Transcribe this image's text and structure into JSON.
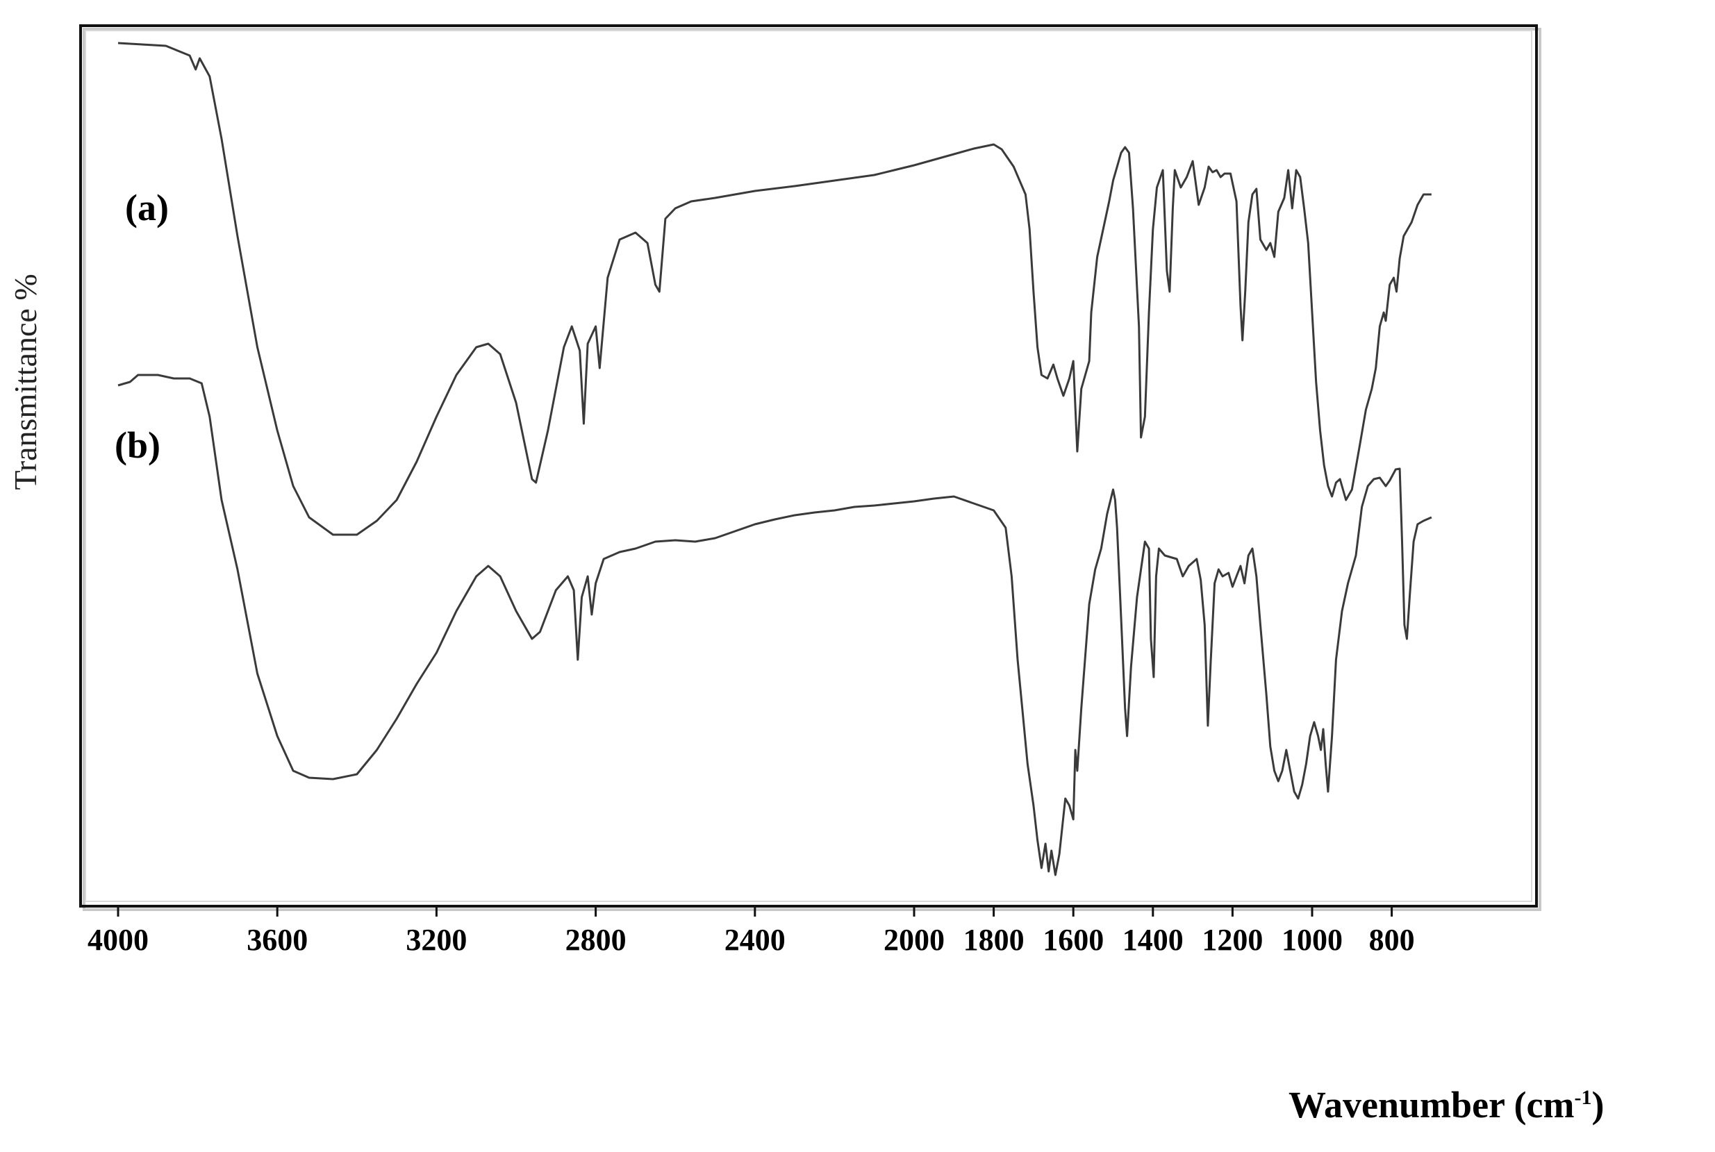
{
  "figure": {
    "ylabel": "Transmittance %",
    "xlabel_main": "Wavenumber (cm",
    "xlabel_sup": "-1",
    "xlabel_close": ")",
    "series_labels": [
      "(a)",
      "(b)"
    ]
  },
  "colors": {
    "line": "#3a3a3a",
    "frame": "#111111",
    "frame_shadow": "#c8c8c8",
    "background": "#ffffff"
  },
  "chart_data": {
    "type": "line",
    "title": "",
    "xlabel": "Wavenumber (cm-1)",
    "ylabel": "Transmittance %",
    "xlim": [
      4000,
      700
    ],
    "x_reversed": true,
    "x_ticks": [
      4000,
      3600,
      3200,
      2800,
      2400,
      2000,
      1800,
      1600,
      1400,
      1200,
      1000,
      800
    ],
    "y_ticks": [],
    "grid": false,
    "legend": "inline labels (a) and (b) on left side",
    "y_units_note": "pixel-y values (relative transmittance, smaller = higher transmittance); spectra are vertically offset",
    "series": [
      {
        "name": "(a)",
        "points": [
          [
            4000,
            62
          ],
          [
            3880,
            66
          ],
          [
            3820,
            80
          ],
          [
            3805,
            100
          ],
          [
            3795,
            84
          ],
          [
            3770,
            110
          ],
          [
            3740,
            200
          ],
          [
            3700,
            340
          ],
          [
            3650,
            500
          ],
          [
            3600,
            620
          ],
          [
            3560,
            700
          ],
          [
            3520,
            745
          ],
          [
            3460,
            770
          ],
          [
            3400,
            770
          ],
          [
            3350,
            750
          ],
          [
            3300,
            720
          ],
          [
            3250,
            665
          ],
          [
            3200,
            600
          ],
          [
            3150,
            540
          ],
          [
            3100,
            500
          ],
          [
            3070,
            495
          ],
          [
            3040,
            510
          ],
          [
            3000,
            580
          ],
          [
            2960,
            690
          ],
          [
            2950,
            695
          ],
          [
            2920,
            620
          ],
          [
            2880,
            500
          ],
          [
            2860,
            470
          ],
          [
            2840,
            505
          ],
          [
            2830,
            610
          ],
          [
            2820,
            495
          ],
          [
            2800,
            470
          ],
          [
            2790,
            530
          ],
          [
            2770,
            400
          ],
          [
            2740,
            345
          ],
          [
            2700,
            335
          ],
          [
            2670,
            350
          ],
          [
            2650,
            410
          ],
          [
            2640,
            420
          ],
          [
            2625,
            315
          ],
          [
            2600,
            300
          ],
          [
            2560,
            290
          ],
          [
            2500,
            285
          ],
          [
            2400,
            275
          ],
          [
            2300,
            268
          ],
          [
            2200,
            260
          ],
          [
            2100,
            252
          ],
          [
            2050,
            245
          ],
          [
            2000,
            238
          ],
          [
            1950,
            230
          ],
          [
            1900,
            222
          ],
          [
            1850,
            214
          ],
          [
            1800,
            208
          ],
          [
            1780,
            215
          ],
          [
            1750,
            240
          ],
          [
            1720,
            280
          ],
          [
            1710,
            330
          ],
          [
            1700,
            420
          ],
          [
            1690,
            500
          ],
          [
            1680,
            540
          ],
          [
            1665,
            545
          ],
          [
            1650,
            525
          ],
          [
            1640,
            545
          ],
          [
            1625,
            570
          ],
          [
            1610,
            545
          ],
          [
            1600,
            520
          ],
          [
            1590,
            650
          ],
          [
            1580,
            560
          ],
          [
            1570,
            540
          ],
          [
            1560,
            520
          ],
          [
            1555,
            450
          ],
          [
            1540,
            370
          ],
          [
            1525,
            330
          ],
          [
            1510,
            290
          ],
          [
            1500,
            260
          ],
          [
            1480,
            220
          ],
          [
            1470,
            212
          ],
          [
            1460,
            220
          ],
          [
            1450,
            300
          ],
          [
            1435,
            470
          ],
          [
            1430,
            630
          ],
          [
            1420,
            600
          ],
          [
            1410,
            450
          ],
          [
            1400,
            330
          ],
          [
            1390,
            270
          ],
          [
            1375,
            245
          ],
          [
            1365,
            390
          ],
          [
            1358,
            420
          ],
          [
            1350,
            300
          ],
          [
            1345,
            245
          ],
          [
            1330,
            270
          ],
          [
            1315,
            255
          ],
          [
            1300,
            232
          ],
          [
            1285,
            295
          ],
          [
            1270,
            270
          ],
          [
            1260,
            240
          ],
          [
            1250,
            248
          ],
          [
            1240,
            245
          ],
          [
            1230,
            255
          ],
          [
            1220,
            250
          ],
          [
            1205,
            250
          ],
          [
            1190,
            290
          ],
          [
            1180,
            440
          ],
          [
            1175,
            490
          ],
          [
            1168,
            420
          ],
          [
            1160,
            320
          ],
          [
            1150,
            280
          ],
          [
            1140,
            272
          ],
          [
            1130,
            345
          ],
          [
            1115,
            360
          ],
          [
            1105,
            350
          ],
          [
            1095,
            370
          ],
          [
            1085,
            305
          ],
          [
            1070,
            285
          ],
          [
            1060,
            245
          ],
          [
            1050,
            300
          ],
          [
            1040,
            245
          ],
          [
            1030,
            255
          ],
          [
            1020,
            300
          ],
          [
            1010,
            350
          ],
          [
            1000,
            450
          ],
          [
            990,
            550
          ],
          [
            980,
            620
          ],
          [
            970,
            670
          ],
          [
            960,
            700
          ],
          [
            950,
            715
          ],
          [
            940,
            695
          ],
          [
            930,
            690
          ],
          [
            915,
            720
          ],
          [
            900,
            705
          ],
          [
            880,
            640
          ],
          [
            865,
            590
          ],
          [
            850,
            560
          ],
          [
            840,
            530
          ],
          [
            830,
            470
          ],
          [
            820,
            450
          ],
          [
            815,
            462
          ],
          [
            805,
            410
          ],
          [
            795,
            400
          ],
          [
            788,
            420
          ],
          [
            780,
            372
          ],
          [
            770,
            340
          ],
          [
            760,
            330
          ],
          [
            750,
            320
          ],
          [
            735,
            295
          ],
          [
            720,
            280
          ],
          [
            700,
            280
          ]
        ]
      },
      {
        "name": "(b)",
        "points": [
          [
            4000,
            555
          ],
          [
            3970,
            550
          ],
          [
            3950,
            540
          ],
          [
            3900,
            540
          ],
          [
            3860,
            545
          ],
          [
            3820,
            545
          ],
          [
            3790,
            552
          ],
          [
            3770,
            600
          ],
          [
            3740,
            720
          ],
          [
            3700,
            820
          ],
          [
            3650,
            970
          ],
          [
            3600,
            1060
          ],
          [
            3560,
            1110
          ],
          [
            3520,
            1120
          ],
          [
            3460,
            1122
          ],
          [
            3400,
            1115
          ],
          [
            3350,
            1080
          ],
          [
            3300,
            1035
          ],
          [
            3250,
            985
          ],
          [
            3200,
            940
          ],
          [
            3150,
            880
          ],
          [
            3100,
            830
          ],
          [
            3070,
            815
          ],
          [
            3040,
            830
          ],
          [
            3000,
            880
          ],
          [
            2960,
            920
          ],
          [
            2940,
            910
          ],
          [
            2900,
            850
          ],
          [
            2870,
            830
          ],
          [
            2855,
            850
          ],
          [
            2845,
            950
          ],
          [
            2835,
            860
          ],
          [
            2820,
            830
          ],
          [
            2810,
            885
          ],
          [
            2800,
            840
          ],
          [
            2780,
            805
          ],
          [
            2740,
            795
          ],
          [
            2700,
            790
          ],
          [
            2650,
            780
          ],
          [
            2600,
            778
          ],
          [
            2550,
            780
          ],
          [
            2500,
            775
          ],
          [
            2450,
            765
          ],
          [
            2400,
            755
          ],
          [
            2350,
            748
          ],
          [
            2300,
            742
          ],
          [
            2250,
            738
          ],
          [
            2200,
            735
          ],
          [
            2150,
            730
          ],
          [
            2100,
            728
          ],
          [
            2050,
            725
          ],
          [
            2000,
            722
          ],
          [
            1950,
            718
          ],
          [
            1900,
            715
          ],
          [
            1850,
            725
          ],
          [
            1800,
            735
          ],
          [
            1770,
            760
          ],
          [
            1755,
            830
          ],
          [
            1740,
            950
          ],
          [
            1725,
            1040
          ],
          [
            1715,
            1100
          ],
          [
            1700,
            1160
          ],
          [
            1690,
            1210
          ],
          [
            1680,
            1250
          ],
          [
            1670,
            1215
          ],
          [
            1662,
            1255
          ],
          [
            1655,
            1225
          ],
          [
            1645,
            1260
          ],
          [
            1635,
            1230
          ],
          [
            1620,
            1150
          ],
          [
            1610,
            1160
          ],
          [
            1600,
            1180
          ],
          [
            1595,
            1080
          ],
          [
            1590,
            1110
          ],
          [
            1580,
            1020
          ],
          [
            1560,
            870
          ],
          [
            1545,
            820
          ],
          [
            1530,
            790
          ],
          [
            1515,
            740
          ],
          [
            1500,
            705
          ],
          [
            1495,
            720
          ],
          [
            1490,
            760
          ],
          [
            1480,
            890
          ],
          [
            1470,
            1020
          ],
          [
            1465,
            1060
          ],
          [
            1455,
            960
          ],
          [
            1440,
            860
          ],
          [
            1430,
            820
          ],
          [
            1420,
            780
          ],
          [
            1410,
            790
          ],
          [
            1405,
            920
          ],
          [
            1398,
            975
          ],
          [
            1392,
            830
          ],
          [
            1385,
            790
          ],
          [
            1370,
            800
          ],
          [
            1340,
            805
          ],
          [
            1325,
            830
          ],
          [
            1310,
            815
          ],
          [
            1290,
            805
          ],
          [
            1280,
            835
          ],
          [
            1270,
            900
          ],
          [
            1262,
            1045
          ],
          [
            1255,
            955
          ],
          [
            1245,
            840
          ],
          [
            1235,
            820
          ],
          [
            1225,
            830
          ],
          [
            1210,
            825
          ],
          [
            1200,
            845
          ],
          [
            1190,
            830
          ],
          [
            1180,
            815
          ],
          [
            1170,
            840
          ],
          [
            1160,
            800
          ],
          [
            1150,
            790
          ],
          [
            1140,
            830
          ],
          [
            1130,
            900
          ],
          [
            1115,
            1000
          ],
          [
            1105,
            1075
          ],
          [
            1095,
            1110
          ],
          [
            1085,
            1125
          ],
          [
            1075,
            1110
          ],
          [
            1065,
            1080
          ],
          [
            1055,
            1110
          ],
          [
            1045,
            1140
          ],
          [
            1035,
            1150
          ],
          [
            1025,
            1130
          ],
          [
            1015,
            1100
          ],
          [
            1005,
            1060
          ],
          [
            995,
            1040
          ],
          [
            985,
            1060
          ],
          [
            978,
            1080
          ],
          [
            972,
            1050
          ],
          [
            966,
            1100
          ],
          [
            960,
            1140
          ],
          [
            950,
            1060
          ],
          [
            940,
            950
          ],
          [
            925,
            880
          ],
          [
            910,
            840
          ],
          [
            900,
            820
          ],
          [
            890,
            800
          ],
          [
            875,
            730
          ],
          [
            860,
            700
          ],
          [
            845,
            690
          ],
          [
            830,
            688
          ],
          [
            815,
            700
          ],
          [
            805,
            692
          ],
          [
            790,
            676
          ],
          [
            780,
            675
          ],
          [
            774,
            780
          ],
          [
            768,
            900
          ],
          [
            762,
            920
          ],
          [
            755,
            860
          ],
          [
            745,
            780
          ],
          [
            735,
            755
          ],
          [
            720,
            750
          ],
          [
            700,
            745
          ]
        ]
      }
    ],
    "annotations": [
      "(a)",
      "(b)"
    ]
  }
}
